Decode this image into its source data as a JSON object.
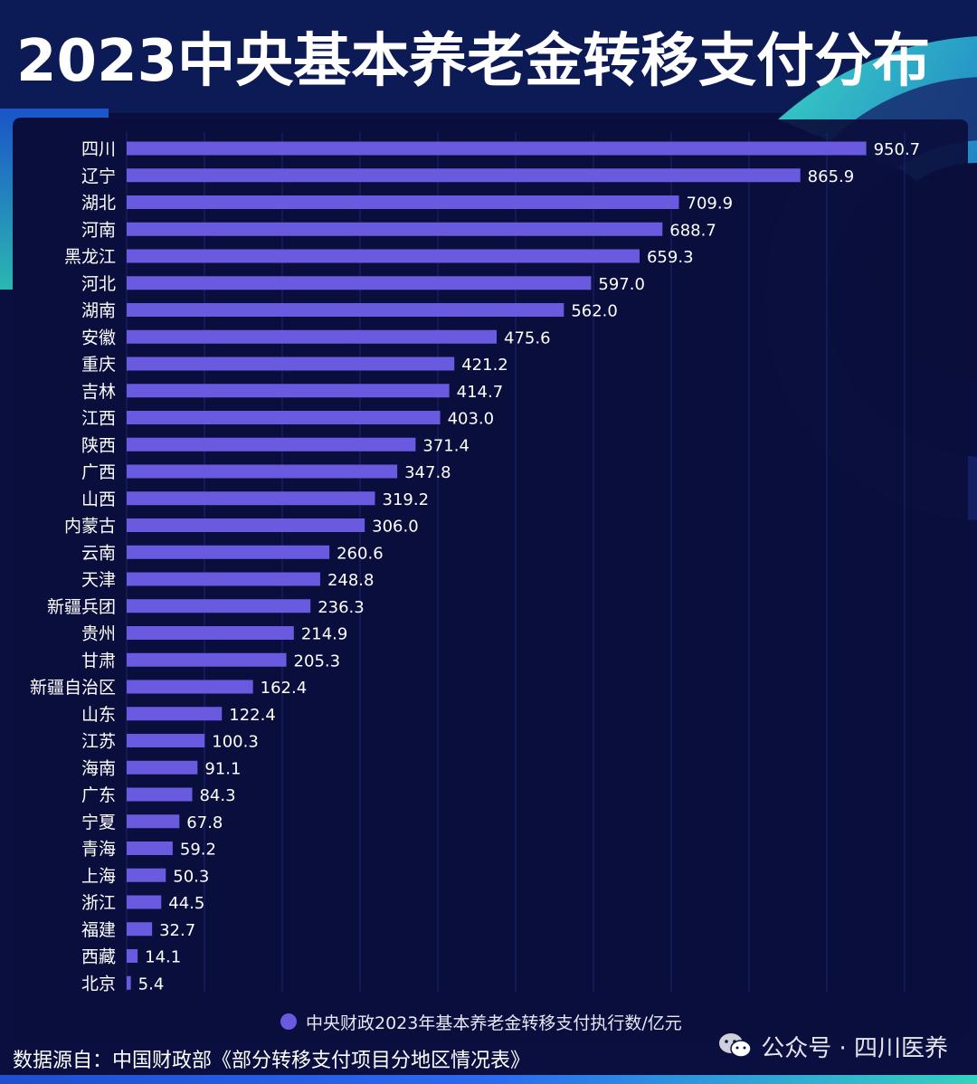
{
  "title": "2023中央基本养老金转移支付分布",
  "colors": {
    "bar": "#6a5ae0",
    "background": "#0b0f3f",
    "accent_teal": "#2fd6c2",
    "accent_blue": "#2a6af0"
  },
  "chart_data": {
    "type": "bar",
    "orientation": "horizontal",
    "title": "2023中央基本养老金转移支付分布",
    "categories": [
      "四川",
      "辽宁",
      "湖北",
      "河南",
      "黑龙江",
      "河北",
      "湖南",
      "安徽",
      "重庆",
      "吉林",
      "江西",
      "陕西",
      "广西",
      "山西",
      "内蒙古",
      "云南",
      "天津",
      "新疆兵团",
      "贵州",
      "甘肃",
      "新疆自治区",
      "山东",
      "江苏",
      "海南",
      "广东",
      "宁夏",
      "青海",
      "上海",
      "浙江",
      "福建",
      "西藏",
      "北京"
    ],
    "series": [
      {
        "name": "中央财政2023年基本养老金转移支付执行数/亿元",
        "values": [
          950.7,
          865.9,
          709.9,
          688.7,
          659.3,
          597.0,
          562.0,
          475.6,
          421.2,
          414.7,
          403.0,
          371.4,
          347.8,
          319.2,
          306.0,
          260.6,
          248.8,
          236.3,
          214.9,
          205.3,
          162.4,
          122.4,
          100.3,
          91.1,
          84.3,
          67.8,
          59.2,
          50.3,
          44.5,
          32.7,
          14.1,
          5.4
        ],
        "labels": [
          "950.7",
          "865.9",
          "709.9",
          "688.7",
          "659.3",
          "597.0",
          "562.0",
          "475.6",
          "421.2",
          "414.7",
          "403.0",
          "371.4",
          "347.8",
          "319.2",
          "306.0",
          "260.6",
          "248.8",
          "236.3",
          "214.9",
          "205.3",
          "162.4",
          "122.4",
          "100.3",
          "91.1",
          "84.3",
          "67.8",
          "59.2",
          "50.3",
          "44.5",
          "32.7",
          "14.1",
          "5.4"
        ]
      }
    ],
    "xlim": [
      0,
      1000
    ],
    "grid": true,
    "legend_position": "bottom"
  },
  "legend": {
    "label": "中央财政2023年基本养老金转移支付执行数/亿元"
  },
  "source": "数据源自：中国财政部《部分转移支付项目分地区情况表》",
  "watermark": {
    "text": "公众号 · 四川医养",
    "icon": "wechat-icon"
  }
}
